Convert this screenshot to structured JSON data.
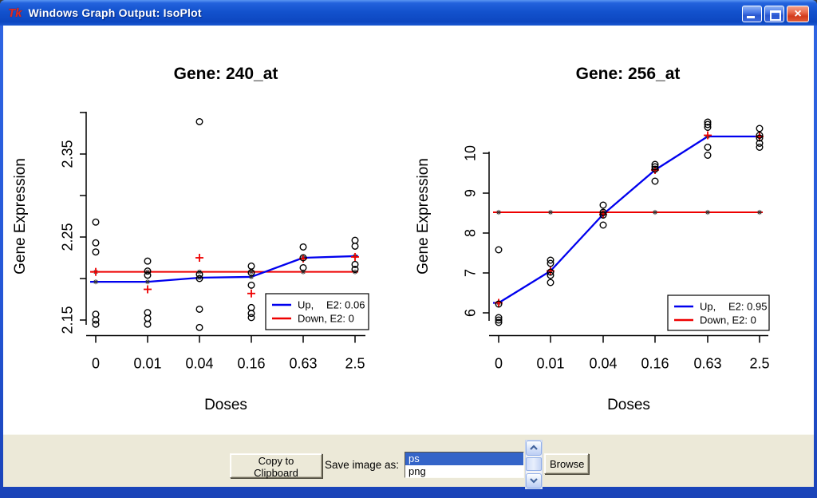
{
  "window": {
    "title": "Windows Graph Output: IsoPlot",
    "app_icon": "Tk",
    "controls": [
      "minimize",
      "maximize",
      "close"
    ]
  },
  "toolbar": {
    "copy_button": "Copy to Clipboard",
    "save_label": "Save image as:",
    "formats": [
      "ps",
      "png"
    ],
    "selected_format": "ps",
    "browse_button": "Browse"
  },
  "chart_data": [
    {
      "type": "line",
      "title": "Gene: 240_at",
      "xlabel": "Doses",
      "ylabel": "Gene Expression",
      "x_categories": [
        "0",
        "0.01",
        "0.04",
        "0.16",
        "0.63",
        "2.5"
      ],
      "y_ticks": [
        {
          "v": 2.15,
          "label": "2.15"
        },
        {
          "v": 2.2,
          "label": ""
        },
        {
          "v": 2.25,
          "label": "2.25"
        },
        {
          "v": 2.3,
          "label": ""
        },
        {
          "v": 2.35,
          "label": "2.35"
        },
        {
          "v": 2.4,
          "label": ""
        }
      ],
      "ylim": [
        2.13,
        2.405
      ],
      "scatter": [
        [
          2.268,
          2.243,
          2.232,
          2.157,
          2.15,
          2.145
        ],
        [
          2.221,
          2.209,
          2.204,
          2.159,
          2.152,
          2.145
        ],
        [
          2.389,
          2.205,
          2.2,
          2.163,
          2.141
        ],
        [
          2.215,
          2.207,
          2.192,
          2.165,
          2.158,
          2.153
        ],
        [
          2.238,
          2.225,
          2.213
        ],
        [
          2.246,
          2.239,
          2.217,
          2.211
        ]
      ],
      "series": [
        {
          "name": "Up",
          "color": "#0000ee",
          "values": [
            2.196,
            2.196,
            2.201,
            2.202,
            2.225,
            2.227
          ]
        },
        {
          "name": "Down",
          "color": "#ee0000",
          "values": [
            2.208,
            2.208,
            2.208,
            2.208,
            2.208,
            2.208
          ]
        }
      ],
      "plus_markers": {
        "color": "#ee0000",
        "values": [
          2.208,
          2.187,
          2.225,
          2.182,
          2.224,
          2.226
        ]
      },
      "legend": {
        "rows": [
          {
            "color": "#0000ee",
            "label": "Up,",
            "value": "E2: 0.06"
          },
          {
            "color": "#ee0000",
            "label": "Down, E2: 0",
            "value": ""
          }
        ]
      }
    },
    {
      "type": "line",
      "title": "Gene: 256_at",
      "xlabel": "Doses",
      "ylabel": "Gene Expression",
      "x_categories": [
        "0",
        "0.01",
        "0.04",
        "0.16",
        "0.63",
        "2.5"
      ],
      "y_ticks": [
        {
          "v": 6,
          "label": "6"
        },
        {
          "v": 7,
          "label": "7"
        },
        {
          "v": 8,
          "label": "8"
        },
        {
          "v": 9,
          "label": "9"
        },
        {
          "v": 10,
          "label": "10"
        }
      ],
      "ylim": [
        5.6,
        10.9
      ],
      "scatter": [
        [
          7.58,
          6.22,
          5.88,
          5.82,
          5.76
        ],
        [
          7.32,
          7.24,
          7.02,
          6.94,
          6.76
        ],
        [
          8.7,
          8.52,
          8.45,
          8.2
        ],
        [
          9.72,
          9.66,
          9.6,
          9.3
        ],
        [
          10.78,
          10.72,
          10.65,
          10.15,
          9.95
        ],
        [
          10.62,
          10.45,
          10.38,
          10.25,
          10.15
        ]
      ],
      "series": [
        {
          "name": "Up",
          "color": "#0000ee",
          "values": [
            6.25,
            7.05,
            8.47,
            9.58,
            10.42,
            10.42
          ]
        },
        {
          "name": "Down",
          "color": "#ee0000",
          "values": [
            8.52,
            8.52,
            8.52,
            8.52,
            8.52,
            8.52
          ]
        }
      ],
      "plus_markers": {
        "color": "#ee0000",
        "values": [
          6.25,
          7.05,
          8.47,
          9.58,
          10.45,
          10.42
        ]
      },
      "legend": {
        "rows": [
          {
            "color": "#0000ee",
            "label": "Up,",
            "value": "E2: 0.95"
          },
          {
            "color": "#ee0000",
            "label": "Down, E2: 0",
            "value": ""
          }
        ]
      }
    }
  ]
}
